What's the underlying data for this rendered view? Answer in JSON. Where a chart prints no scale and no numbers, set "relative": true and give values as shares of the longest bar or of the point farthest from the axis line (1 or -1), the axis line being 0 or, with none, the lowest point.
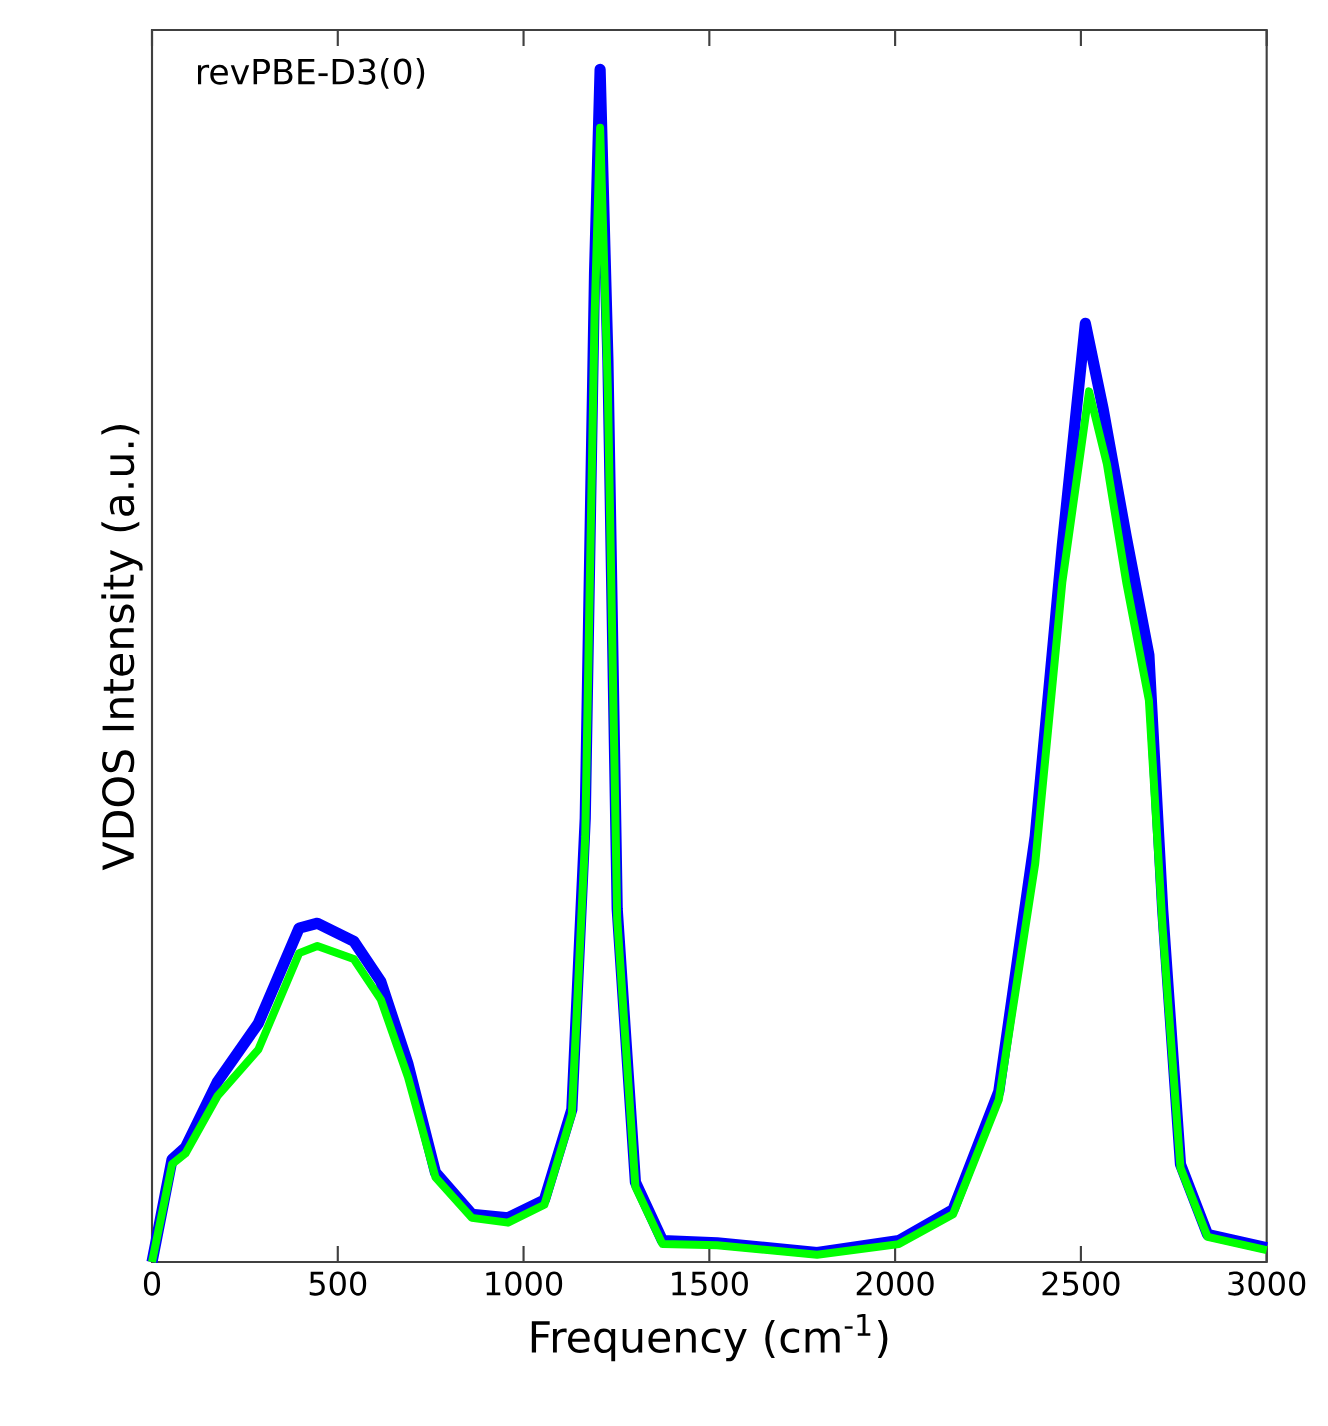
{
  "chart_data": {
    "type": "line",
    "relative": true,
    "xlabel": "Frequency (cm$^{-1}$)",
    "ylabel": "VDOS Intensity (a.u.)",
    "annotations": [
      "revPBE-D3(0)"
    ],
    "xlim": [
      0,
      3000
    ],
    "xticks": [
      0,
      500,
      1000,
      1500,
      2000,
      2500,
      3000
    ],
    "series": [
      {
        "color": "#0000ff",
        "x": [
          0,
          54,
          90,
          176,
          286,
          396,
          445,
          543,
          616,
          689,
          763,
          861,
          958,
          1056,
          1130,
          1166,
          1191,
          1206,
          1227,
          1252,
          1301,
          1374,
          1521,
          1790,
          2010,
          2156,
          2279,
          2377,
          2450,
          2512,
          2560,
          2622,
          2683,
          2720,
          2768,
          2841,
          3000
        ],
        "values": [
          0,
          0.086,
          0.096,
          0.151,
          0.2,
          0.28,
          0.284,
          0.269,
          0.235,
          0.166,
          0.075,
          0.04,
          0.037,
          0.052,
          0.128,
          0.372,
          0.829,
          1.0,
          0.756,
          0.296,
          0.067,
          0.018,
          0.016,
          0.008,
          0.018,
          0.044,
          0.143,
          0.357,
          0.601,
          0.787,
          0.715,
          0.608,
          0.509,
          0.296,
          0.082,
          0.023,
          0.012
        ]
      },
      {
        "color": "#00ff00",
        "x": [
          0,
          54,
          90,
          176,
          286,
          396,
          445,
          543,
          616,
          689,
          763,
          861,
          958,
          1056,
          1130,
          1166,
          1191,
          1206,
          1227,
          1252,
          1301,
          1374,
          1521,
          1790,
          2010,
          2156,
          2279,
          2377,
          2450,
          2522,
          2570,
          2622,
          2683,
          2720,
          2768,
          2841,
          3000
        ],
        "values": [
          0,
          0.082,
          0.091,
          0.139,
          0.178,
          0.259,
          0.265,
          0.254,
          0.22,
          0.155,
          0.071,
          0.037,
          0.033,
          0.048,
          0.124,
          0.357,
          0.791,
          0.951,
          0.73,
          0.288,
          0.063,
          0.015,
          0.014,
          0.006,
          0.015,
          0.04,
          0.136,
          0.334,
          0.57,
          0.73,
          0.669,
          0.57,
          0.471,
          0.28,
          0.079,
          0.021,
          0.01
        ]
      }
    ]
  }
}
